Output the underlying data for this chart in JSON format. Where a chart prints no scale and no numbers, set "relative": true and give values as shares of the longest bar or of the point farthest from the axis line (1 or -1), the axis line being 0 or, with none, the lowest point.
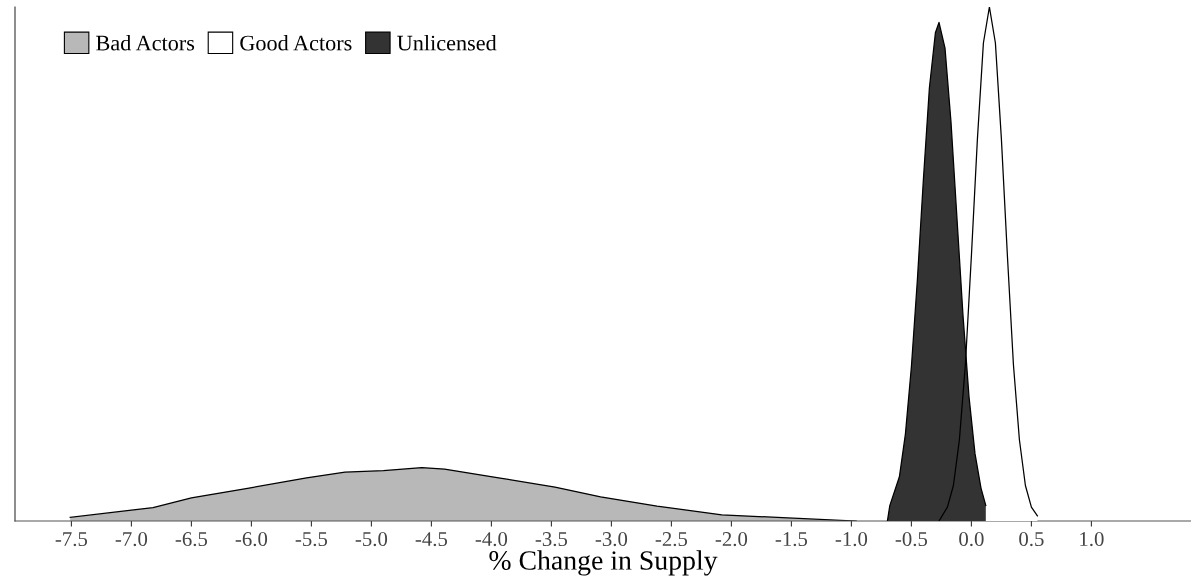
{
  "chart_data": {
    "type": "area",
    "relative": true,
    "xlabel": "% Change in Supply",
    "legend": "top left",
    "xlim": [
      -7.97,
      1.83
    ],
    "xticks": [
      {
        "value": -7.5,
        "label": "-7.5"
      },
      {
        "value": -7.0,
        "label": "-7.0"
      },
      {
        "value": -6.5,
        "label": "-6.5"
      },
      {
        "value": -6.0,
        "label": "-6.0"
      },
      {
        "value": -5.5,
        "label": "-5.5"
      },
      {
        "value": -5.0,
        "label": "-5.0"
      },
      {
        "value": -4.5,
        "label": "-4.5"
      },
      {
        "value": -4.0,
        "label": "-4.0"
      },
      {
        "value": -3.5,
        "label": "-3.5"
      },
      {
        "value": -3.0,
        "label": "-3.0"
      },
      {
        "value": -2.5,
        "label": "-2.5"
      },
      {
        "value": -2.0,
        "label": "-2.0"
      },
      {
        "value": -1.5,
        "label": "-1.5"
      },
      {
        "value": -1.0,
        "label": "-1.0"
      },
      {
        "value": -0.5,
        "label": "-0.5"
      },
      {
        "value": 0.0,
        "label": "0.0"
      },
      {
        "value": 0.5,
        "label": "0.5"
      },
      {
        "value": 1.0,
        "label": "1.0"
      }
    ],
    "series": [
      {
        "name": "Bad Actors",
        "color": "#b8b8b8",
        "x": [
          -7.51,
          -7.0,
          -6.82,
          -6.5,
          -6.02,
          -5.54,
          -5.22,
          -4.9,
          -4.58,
          -4.39,
          -3.94,
          -3.47,
          -3.09,
          -2.62,
          -2.08,
          -1.53,
          -0.96
        ],
        "values": [
          0.007,
          0.021,
          0.026,
          0.045,
          0.064,
          0.084,
          0.095,
          0.098,
          0.104,
          0.101,
          0.084,
          0.066,
          0.047,
          0.029,
          0.012,
          0.006,
          0.0
        ]
      },
      {
        "name": "Good Actors",
        "color": "#ffffff",
        "x": [
          -0.27,
          -0.2,
          -0.15,
          -0.1,
          -0.05,
          0.0,
          0.05,
          0.1,
          0.15,
          0.2,
          0.25,
          0.3,
          0.35,
          0.4,
          0.45,
          0.5,
          0.55
        ],
        "values": [
          0.0,
          0.027,
          0.069,
          0.158,
          0.305,
          0.516,
          0.743,
          0.93,
          1.0,
          0.93,
          0.743,
          0.516,
          0.305,
          0.158,
          0.069,
          0.027,
          0.01
        ]
      },
      {
        "name": "Unlicensed",
        "color": "#333333",
        "x": [
          -0.7,
          -0.68,
          -0.6,
          -0.55,
          -0.5,
          -0.45,
          -0.4,
          -0.35,
          -0.3,
          -0.27,
          -0.22,
          -0.17,
          -0.12,
          -0.07,
          -0.02,
          0.03,
          0.08,
          0.12
        ],
        "values": [
          0.0,
          0.03,
          0.086,
          0.169,
          0.3,
          0.47,
          0.665,
          0.843,
          0.95,
          0.97,
          0.92,
          0.776,
          0.588,
          0.4,
          0.242,
          0.131,
          0.064,
          0.03
        ]
      }
    ]
  }
}
